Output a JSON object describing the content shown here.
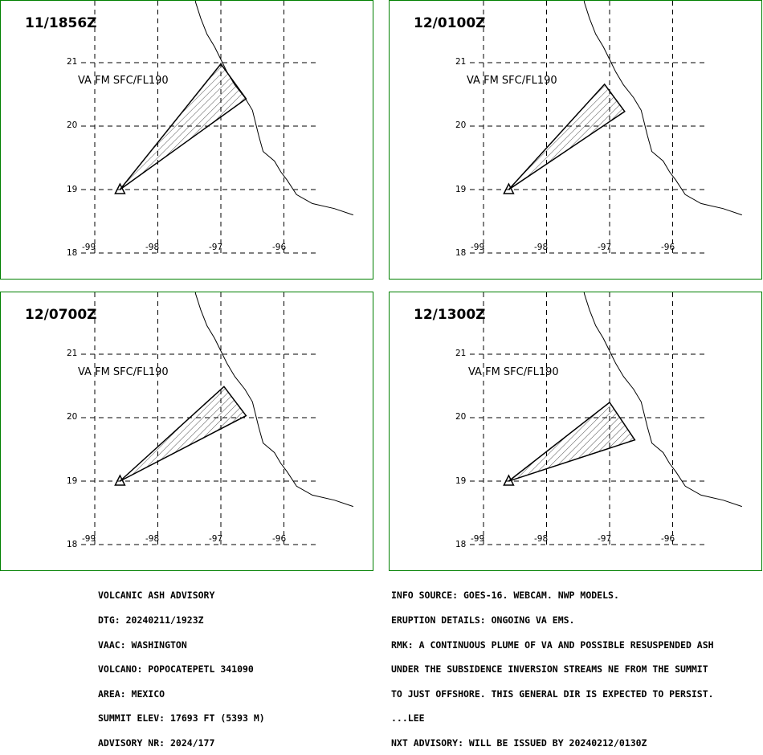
{
  "panels": [
    {
      "time": "11/1856Z",
      "va_label": "VA FM SFC/FL190",
      "plume_lonlat": [
        [
          -98.6,
          19.0
        ],
        [
          -97.0,
          20.98
        ],
        [
          -96.6,
          20.43
        ]
      ]
    },
    {
      "time": "12/0100Z",
      "va_label": "VA FM SFC/FL190",
      "plume_lonlat": [
        [
          -98.6,
          19.0
        ],
        [
          -97.08,
          20.66
        ],
        [
          -96.76,
          20.23
        ]
      ]
    },
    {
      "time": "12/0700Z",
      "va_label": "VA FM SFC/FL190",
      "plume_lonlat": [
        [
          -98.6,
          19.0
        ],
        [
          -96.95,
          20.49
        ],
        [
          -96.6,
          20.03
        ]
      ]
    },
    {
      "time": "12/1300Z",
      "va_label": "VA FM SFC/FL190",
      "plume_lonlat": [
        [
          -98.6,
          19.0
        ],
        [
          -97.0,
          20.24
        ],
        [
          -96.6,
          19.65
        ]
      ]
    }
  ],
  "axes": {
    "lat_ticks": [
      "21",
      "20",
      "19",
      "18"
    ],
    "lon_ticks": [
      "-99",
      "-98",
      "-97",
      "-96"
    ],
    "lat_values": [
      21,
      20,
      19,
      18
    ],
    "lon_values": [
      -99,
      -98,
      -97,
      -96
    ]
  },
  "advisory_left": {
    "line1": "VOLCANIC ASH ADVISORY",
    "line2": "DTG: 20240211/1923Z",
    "line3": "VAAC: WASHINGTON",
    "line4": "VOLCANO: POPOCATEPETL 341090",
    "line5": "AREA: MEXICO",
    "line6": "SUMMIT ELEV: 17693 FT (5393 M)",
    "line7": "ADVISORY NR: 2024/177"
  },
  "advisory_right": {
    "line1": "INFO SOURCE: GOES-16. WEBCAM. NWP MODELS.",
    "line2": "ERUPTION DETAILS: ONGOING VA EMS.",
    "line3": "RMK: A CONTINUOUS PLUME OF VA AND POSSIBLE RESUSPENDED ASH",
    "line4": "UNDER THE SUBSIDENCE INVERSION STREAMS NE FROM THE SUMMIT",
    "line5": "TO JUST OFFSHORE. THIS GENERAL DIR IS EXPECTED TO PERSIST.",
    "line6": "...LEE",
    "line7": "NXT ADVISORY: WILL BE ISSUED BY 20240212/0130Z"
  },
  "colors": {
    "panel_border": "#008000",
    "lines": "#000000",
    "background": "#ffffff"
  },
  "icons": {
    "volcano": "volcano-triangle-icon"
  }
}
